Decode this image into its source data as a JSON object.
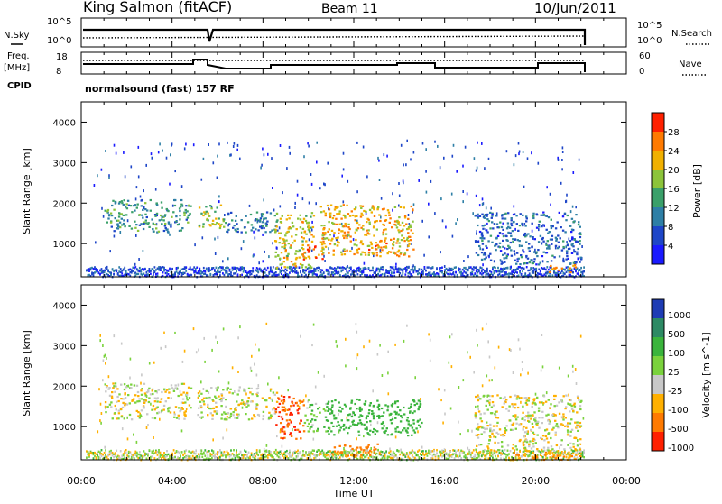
{
  "header": {
    "station": "King Salmon (fitACF)",
    "beam": "Beam 11",
    "date": "10/Jun/2011",
    "mode": "normalsound (fast) 157 RF"
  },
  "noise_panel": {
    "left_label": "N.Sky",
    "right_label": "N.Search",
    "left_ticks": [
      "10^5",
      "10^0"
    ],
    "right_ticks": [
      "10^5",
      "10^0"
    ]
  },
  "freq_panel": {
    "left_label_1": "Freq.",
    "left_label_2": "[MHz]",
    "left_ticks": [
      "18",
      "8"
    ],
    "right_label": "Nave",
    "right_ticks": [
      "60",
      "0"
    ],
    "cpid_label": "CPID"
  },
  "power_panel": {
    "ylabel": "Slant Range [km]",
    "yticks": [
      "4000",
      "3000",
      "2000",
      "1000"
    ],
    "colorbar_label": "Power [dB]",
    "colorbar_ticks": [
      "28",
      "24",
      "20",
      "16",
      "12",
      "8",
      "4"
    ],
    "colorbar_colors": [
      "#1a1aff",
      "#1e46c8",
      "#2e7fa6",
      "#3aa06a",
      "#8cc43a",
      "#f0b000",
      "#ff7a00",
      "#ff2000"
    ]
  },
  "velocity_panel": {
    "ylabel": "Slant Range [km]",
    "yticks": [
      "4000",
      "3000",
      "2000",
      "1000"
    ],
    "colorbar_label": "Velocity [m s^-1]",
    "colorbar_ticks": [
      "1000",
      "500",
      "100",
      "25",
      "-25",
      "-100",
      "-500",
      "-1000"
    ],
    "colorbar_colors": [
      "#1e3cb4",
      "#2d8a64",
      "#3ab43c",
      "#7ad23c",
      "#c8c8c8",
      "#ffb000",
      "#ff7a00",
      "#ff2000"
    ]
  },
  "xaxis": {
    "label": "Time UT",
    "ticks": [
      "00:00",
      "04:00",
      "08:00",
      "12:00",
      "16:00",
      "20:00",
      "00:00"
    ]
  },
  "chart_data": {
    "type": "heatmap",
    "title": "King Salmon (fitACF) Beam 11 10/Jun/2011",
    "xlabel": "Time UT",
    "ylabel": "Slant Range [km]",
    "xlim_hours": [
      0,
      24
    ],
    "ylim_km": [
      180,
      4500
    ],
    "data_end_hour": 22.1,
    "power_regions": [
      {
        "t": [
          1.0,
          4.8
        ],
        "r": [
          1300,
          2100
        ],
        "db": 12
      },
      {
        "t": [
          5.1,
          6.3
        ],
        "r": [
          1400,
          2000
        ],
        "db": 18
      },
      {
        "t": [
          6.3,
          8.6
        ],
        "r": [
          1300,
          1800
        ],
        "db": 10
      },
      {
        "t": [
          8.5,
          10.2
        ],
        "r": [
          400,
          1800
        ],
        "db": 20
      },
      {
        "t": [
          10.5,
          14.6
        ],
        "r": [
          700,
          2000
        ],
        "db": 22
      },
      {
        "t": [
          9.7,
          10.6
        ],
        "r": [
          600,
          1000
        ],
        "db": 26
      },
      {
        "t": [
          12.6,
          13.4
        ],
        "r": [
          800,
          1100
        ],
        "db": 26
      },
      {
        "t": [
          17.3,
          22.0
        ],
        "r": [
          500,
          1800
        ],
        "db": 8
      },
      {
        "t": [
          20.5,
          21.8
        ],
        "r": [
          300,
          500
        ],
        "db": 24
      }
    ],
    "velocity_regions": [
      {
        "t": [
          1.0,
          4.8
        ],
        "r": [
          1200,
          2100
        ],
        "v": 0
      },
      {
        "t": [
          5.1,
          8.6
        ],
        "r": [
          1200,
          2000
        ],
        "v": 0
      },
      {
        "t": [
          8.5,
          9.8
        ],
        "r": [
          700,
          1800
        ],
        "v": -500
      },
      {
        "t": [
          9.8,
          10.8
        ],
        "r": [
          900,
          1600
        ],
        "v": 80
      },
      {
        "t": [
          10.8,
          15.0
        ],
        "r": [
          800,
          1700
        ],
        "v": 300
      },
      {
        "t": [
          11.0,
          13.2
        ],
        "r": [
          300,
          600
        ],
        "v": -300
      },
      {
        "t": [
          17.3,
          22.0
        ],
        "r": [
          400,
          1800
        ],
        "v": 0
      },
      {
        "t": [
          19.0,
          22.0
        ],
        "r": [
          200,
          400
        ],
        "v": -120
      }
    ]
  }
}
